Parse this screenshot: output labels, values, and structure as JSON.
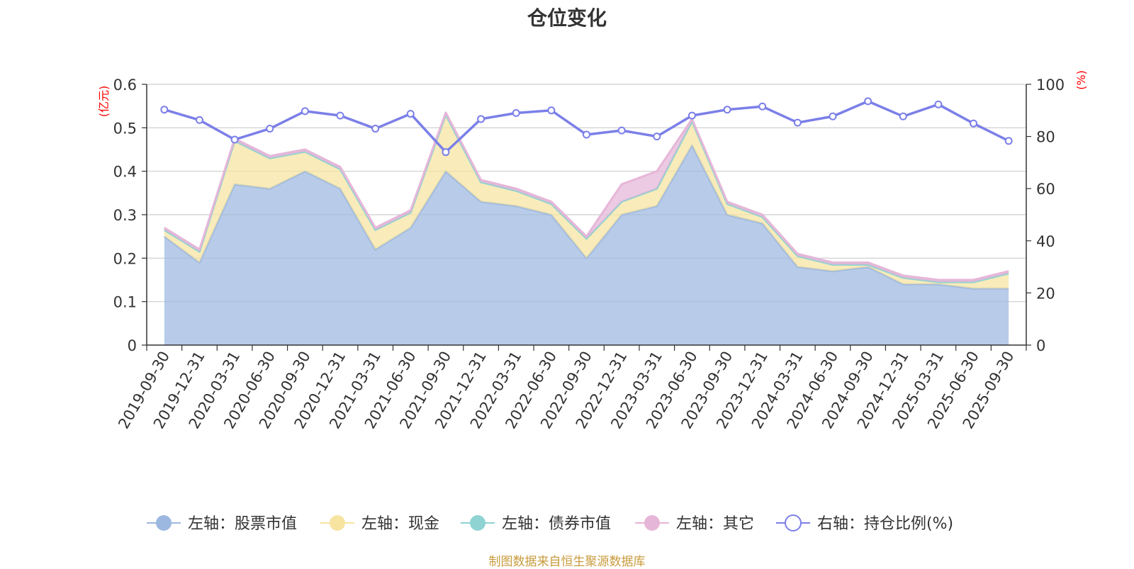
{
  "chart_data": {
    "type": "area",
    "title": "仓位变化",
    "source": "制图数据来自恒生聚源数据库",
    "y_left_unit": "(亿元)",
    "y_right_unit": "(%)",
    "y_left_ticks": [
      "0",
      "0.1",
      "0.2",
      "0.3",
      "0.4",
      "0.5",
      "0.6"
    ],
    "y_right_ticks": [
      "0",
      "20",
      "40",
      "60",
      "80",
      "100"
    ],
    "ylim_left": [
      0,
      0.6
    ],
    "ylim_right": [
      0,
      100
    ],
    "categories": [
      "2019-09-30",
      "2019-12-31",
      "2020-03-31",
      "2020-06-30",
      "2020-09-30",
      "2020-12-31",
      "2021-03-31",
      "2021-06-30",
      "2021-09-30",
      "2021-12-31",
      "2022-03-31",
      "2022-06-30",
      "2022-09-30",
      "2022-12-31",
      "2023-03-31",
      "2023-06-30",
      "2023-09-30",
      "2023-12-31",
      "2024-03-31",
      "2024-06-30",
      "2024-09-30",
      "2024-12-31",
      "2025-03-31",
      "2025-06-30",
      "2025-09-30"
    ],
    "series": [
      {
        "name": "左轴：股票市值",
        "axis": "left",
        "stack": true,
        "color": "#9db8e0",
        "values": [
          0.25,
          0.19,
          0.37,
          0.36,
          0.4,
          0.36,
          0.22,
          0.27,
          0.4,
          0.33,
          0.32,
          0.3,
          0.2,
          0.3,
          0.32,
          0.46,
          0.3,
          0.28,
          0.18,
          0.17,
          0.18,
          0.14,
          0.14,
          0.13,
          0.13
        ]
      },
      {
        "name": "左轴：现金",
        "axis": "left",
        "stack": true,
        "color": "#f7e4a0",
        "values": [
          0.015,
          0.025,
          0.1,
          0.07,
          0.045,
          0.045,
          0.045,
          0.035,
          0.13,
          0.045,
          0.035,
          0.025,
          0.045,
          0.03,
          0.04,
          0.055,
          0.025,
          0.015,
          0.025,
          0.015,
          0.005,
          0.015,
          0.005,
          0.015,
          0.035
        ]
      },
      {
        "name": "左轴：债券市值",
        "axis": "left",
        "stack": true,
        "color": "#8fd3d3",
        "values": [
          0,
          0,
          0,
          0,
          0,
          0,
          0,
          0,
          0,
          0,
          0,
          0,
          0,
          0,
          0,
          0,
          0,
          0,
          0,
          0,
          0,
          0,
          0,
          0,
          0
        ]
      },
      {
        "name": "左轴：其它",
        "axis": "left",
        "stack": true,
        "color": "#e6b6d8",
        "values": [
          0.005,
          0.005,
          0.005,
          0.005,
          0.005,
          0.005,
          0.005,
          0.005,
          0.005,
          0.005,
          0.005,
          0.005,
          0.005,
          0.04,
          0.04,
          0.005,
          0.005,
          0.005,
          0.005,
          0.005,
          0.005,
          0.005,
          0.005,
          0.005,
          0.005
        ]
      },
      {
        "name": "右轴：持仓比例(%)",
        "axis": "right",
        "stack": false,
        "color": "#7b7fe8",
        "values": [
          90.3,
          86.3,
          78.8,
          83.0,
          89.7,
          88.0,
          83.0,
          88.7,
          74.0,
          86.7,
          89.0,
          90.0,
          80.7,
          82.3,
          80.0,
          88.0,
          90.3,
          91.5,
          85.3,
          87.7,
          93.5,
          87.7,
          92.3,
          85.0,
          78.3
        ]
      }
    ]
  }
}
